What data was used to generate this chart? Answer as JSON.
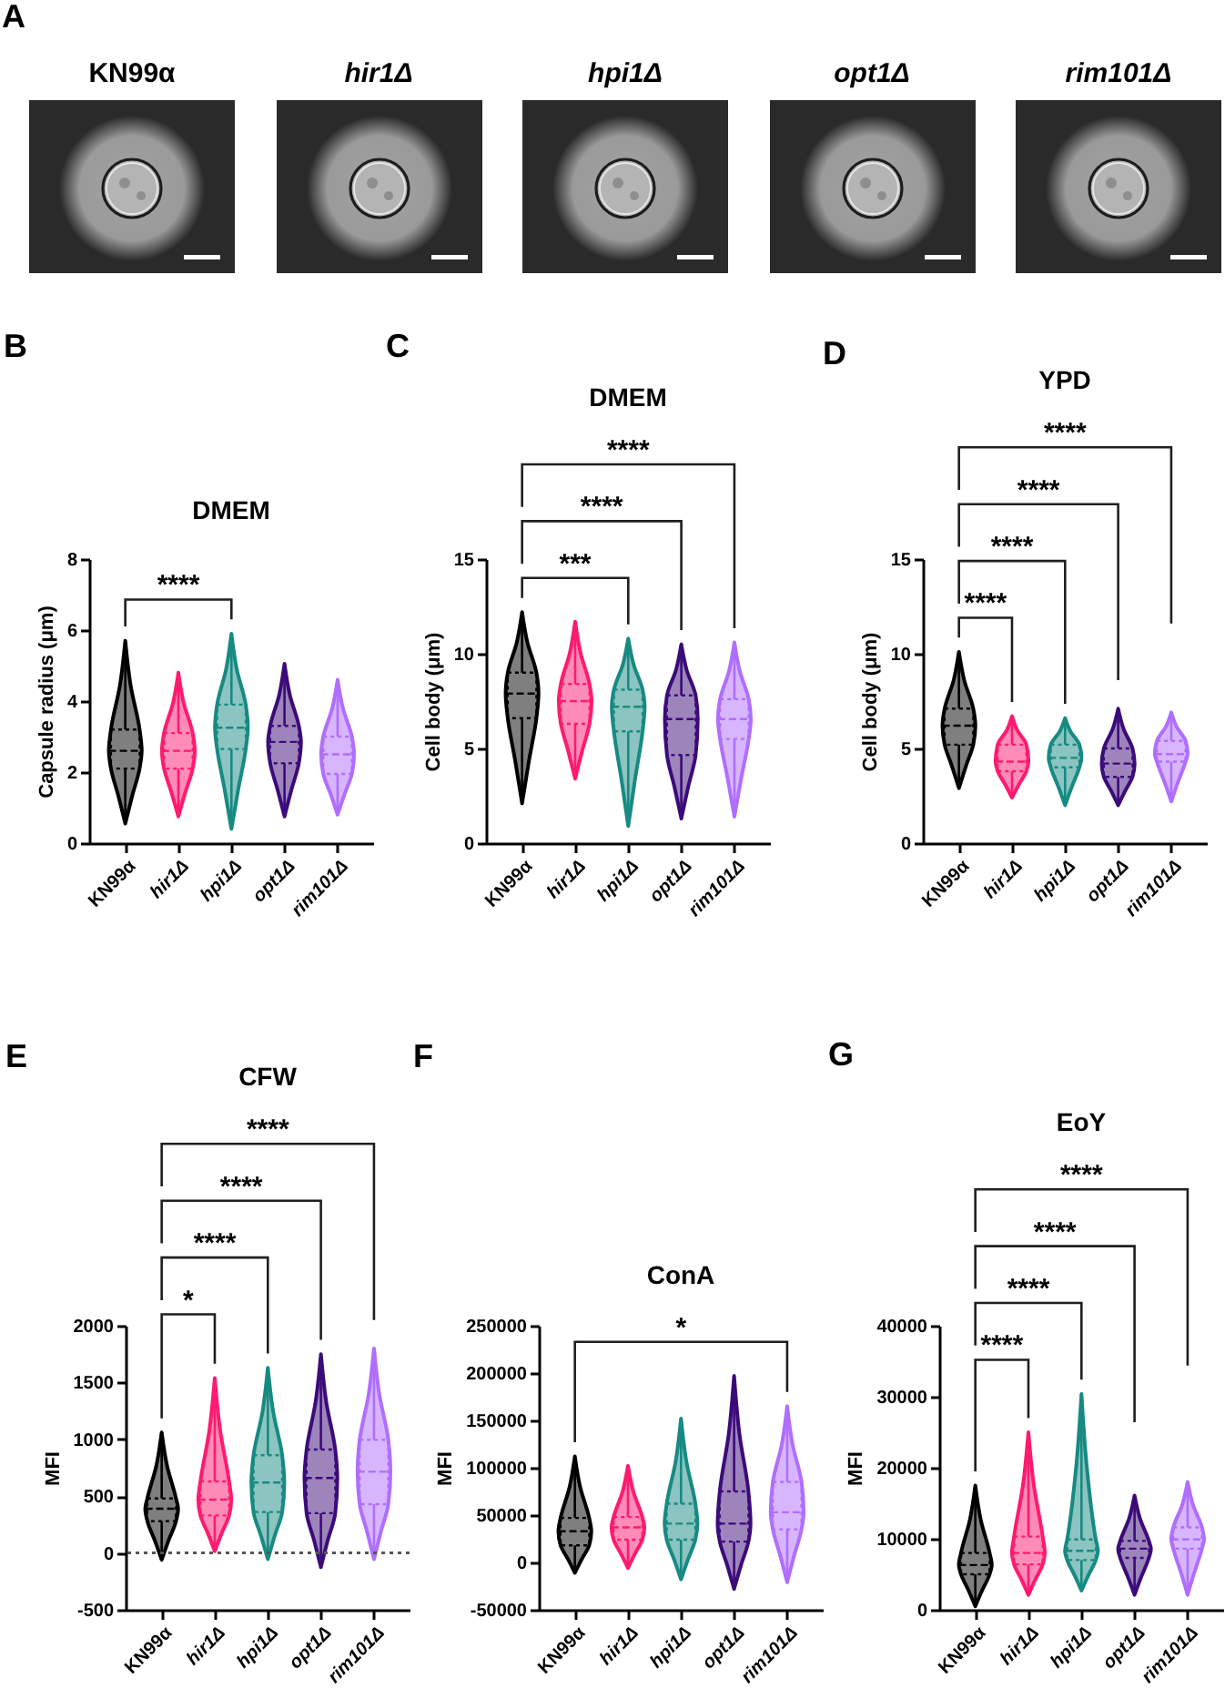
{
  "chart_data": [
    {
      "type": "other",
      "annotations": [
        "A"
      ],
      "categories": [
        "KN99α",
        "hir1Δ",
        "hpi1Δ",
        "opt1Δ",
        "rim101Δ"
      ]
    },
    {
      "type": "box",
      "title": "DMEM",
      "ylabel": "Capsule radius (μm)",
      "categories": [
        "KN99α",
        "hir1Δ",
        "hpi1Δ",
        "opt1Δ",
        "rim101Δ"
      ],
      "colors": [
        "#000000",
        "#ff1a70",
        "#178a82",
        "#3c0b7a",
        "#b06eff"
      ],
      "boxes": [
        {
          "low": 0.55,
          "q1": 2.1,
          "median": 2.6,
          "q3": 3.2,
          "high": 5.7
        },
        {
          "low": 0.75,
          "q1": 2.1,
          "median": 2.6,
          "q3": 3.1,
          "high": 4.8
        },
        {
          "low": 0.4,
          "q1": 2.65,
          "median": 3.25,
          "q3": 3.9,
          "high": 5.9
        },
        {
          "low": 0.75,
          "q1": 2.25,
          "median": 2.85,
          "q3": 3.3,
          "high": 5.05
        },
        {
          "low": 0.8,
          "q1": 1.95,
          "median": 2.5,
          "q3": 3.0,
          "high": 4.6
        }
      ],
      "ylim": [
        0,
        8
      ],
      "yticks": [
        0,
        2,
        4,
        6,
        8
      ],
      "annotations": [
        "B",
        "****"
      ]
    },
    {
      "type": "box",
      "title": "DMEM",
      "ylabel": "Cell body (μm)",
      "categories": [
        "KN99α",
        "hir1Δ",
        "hpi1Δ",
        "opt1Δ",
        "rim101Δ"
      ],
      "colors": [
        "#000000",
        "#ff1a70",
        "#178a82",
        "#3c0b7a",
        "#b06eff"
      ],
      "boxes": [
        {
          "low": 2.1,
          "q1": 6.6,
          "median": 7.9,
          "q3": 9.0,
          "high": 12.2
        },
        {
          "low": 3.4,
          "q1": 6.3,
          "median": 7.5,
          "q3": 8.4,
          "high": 11.7
        },
        {
          "low": 0.9,
          "q1": 5.9,
          "median": 7.2,
          "q3": 8.1,
          "high": 10.8
        },
        {
          "low": 1.3,
          "q1": 4.65,
          "median": 6.55,
          "q3": 7.8,
          "high": 10.5
        },
        {
          "low": 1.4,
          "q1": 5.5,
          "median": 6.55,
          "q3": 7.6,
          "high": 10.6
        }
      ],
      "ylim": [
        0,
        15
      ],
      "yticks": [
        0,
        5,
        10,
        15
      ],
      "annotations": [
        "C",
        "***",
        "****",
        "****"
      ]
    },
    {
      "type": "box",
      "title": "YPD",
      "ylabel": "Cell body (μm)",
      "categories": [
        "KN99α",
        "hir1Δ",
        "hpi1Δ",
        "opt1Δ",
        "rim101Δ"
      ],
      "colors": [
        "#000000",
        "#ff1a70",
        "#178a82",
        "#3c0b7a",
        "#b06eff"
      ],
      "boxes": [
        {
          "low": 2.9,
          "q1": 5.2,
          "median": 6.2,
          "q3": 7.1,
          "high": 10.1
        },
        {
          "low": 2.4,
          "q1": 3.8,
          "median": 4.3,
          "q3": 5.2,
          "high": 6.7
        },
        {
          "low": 2.0,
          "q1": 4.0,
          "median": 4.5,
          "q3": 5.2,
          "high": 6.6
        },
        {
          "low": 2.0,
          "q1": 3.5,
          "median": 4.2,
          "q3": 5.0,
          "high": 7.1
        },
        {
          "low": 2.2,
          "q1": 4.3,
          "median": 4.7,
          "q3": 5.4,
          "high": 6.9
        }
      ],
      "ylim": [
        0,
        15
      ],
      "yticks": [
        0,
        5,
        10,
        15
      ],
      "annotations": [
        "D",
        "****",
        "****",
        "****",
        "****"
      ]
    },
    {
      "type": "box",
      "title": "CFW",
      "ylabel": "MFI",
      "categories": [
        "KN99α",
        "hir1Δ",
        "hpi1Δ",
        "opt1Δ",
        "rim101Δ"
      ],
      "colors": [
        "#000000",
        "#ff1a70",
        "#178a82",
        "#3c0b7a",
        "#b06eff"
      ],
      "boxes": [
        {
          "low": -60,
          "q1": 280,
          "median": 390,
          "q3": 480,
          "high": 1060
        },
        {
          "low": 15,
          "q1": 330,
          "median": 470,
          "q3": 630,
          "high": 1540
        },
        {
          "low": -55,
          "q1": 360,
          "median": 620,
          "q3": 860,
          "high": 1630
        },
        {
          "low": -125,
          "q1": 350,
          "median": 660,
          "q3": 910,
          "high": 1750
        },
        {
          "low": -55,
          "q1": 430,
          "median": 715,
          "q3": 995,
          "high": 1800
        }
      ],
      "ylim": [
        -500,
        2000
      ],
      "yticks": [
        -500,
        0,
        500,
        1000,
        1500,
        2000
      ],
      "ref_lines": [
        {
          "axis": "y",
          "value": 0,
          "color": "#555555",
          "line_style": "dotted"
        }
      ],
      "annotations": [
        "E",
        "*",
        "****",
        "****",
        "****"
      ]
    },
    {
      "type": "box",
      "title": "ConA",
      "ylabel": "MFI",
      "categories": [
        "KN99α",
        "hir1Δ",
        "hpi1Δ",
        "opt1Δ",
        "rim101Δ"
      ],
      "colors": [
        "#000000",
        "#ff1a70",
        "#178a82",
        "#3c0b7a",
        "#b06eff"
      ],
      "boxes": [
        {
          "low": -11000,
          "q1": 18000,
          "median": 33000,
          "q3": 47000,
          "high": 112000
        },
        {
          "low": -6000,
          "q1": 24000,
          "median": 37000,
          "q3": 48000,
          "high": 102000
        },
        {
          "low": -18000,
          "q1": 24000,
          "median": 41000,
          "q3": 62000,
          "high": 152000
        },
        {
          "low": -28000,
          "q1": 22000,
          "median": 41000,
          "q3": 75000,
          "high": 197000
        },
        {
          "low": -21000,
          "q1": 35000,
          "median": 53000,
          "q3": 85000,
          "high": 165000
        }
      ],
      "ylim": [
        -50000,
        250000
      ],
      "yticks": [
        -50000,
        0,
        50000,
        100000,
        150000,
        200000,
        250000
      ],
      "annotations": [
        "F",
        "*"
      ]
    },
    {
      "type": "box",
      "title": "EoY",
      "ylabel": "MFI",
      "categories": [
        "KN99α",
        "hir1Δ",
        "hpi1Δ",
        "opt1Δ",
        "rim101Δ"
      ],
      "colors": [
        "#000000",
        "#ff1a70",
        "#178a82",
        "#3c0b7a",
        "#b06eff"
      ],
      "boxes": [
        {
          "low": 500,
          "q1": 5000,
          "median": 6300,
          "q3": 8000,
          "high": 17500
        },
        {
          "low": 2100,
          "q1": 6400,
          "median": 8000,
          "q3": 10300,
          "high": 25000
        },
        {
          "low": 2700,
          "q1": 7000,
          "median": 8300,
          "q3": 9900,
          "high": 30400
        },
        {
          "low": 2100,
          "q1": 7300,
          "median": 8600,
          "q3": 9700,
          "high": 16100
        },
        {
          "low": 2100,
          "q1": 8600,
          "median": 9900,
          "q3": 11600,
          "high": 18000
        }
      ],
      "ylim": [
        0,
        40000
      ],
      "yticks": [
        0,
        10000,
        20000,
        30000,
        40000
      ],
      "annotations": [
        "G",
        "****",
        "****",
        "****",
        "****"
      ]
    }
  ]
}
